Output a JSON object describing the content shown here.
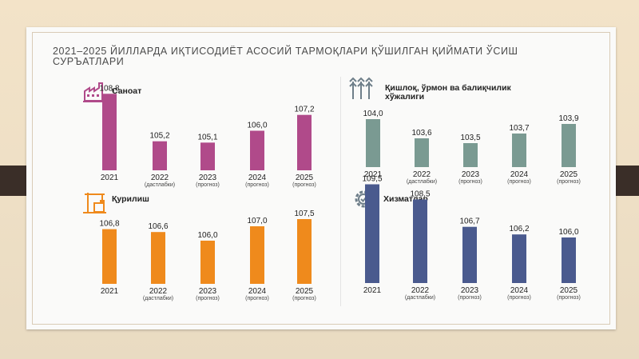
{
  "headline": "2021–2025 ЙИЛЛАРДА ИҚТИСОДИЁТ АСОСИЙ ТАРМОҚЛАРИ ҚЎШИЛГАН ҚИЙМАТИ ЎСИШ СУРЪАТЛАРИ",
  "chart_data": [
    {
      "type": "bar",
      "title": "Саноат",
      "icon": "factory-icon",
      "color": "#b04a8a",
      "categories": [
        "2021",
        "2022",
        "2023",
        "2024",
        "2025"
      ],
      "category_notes": [
        "",
        "(дастлабки)",
        "(прогноз)",
        "(прогноз)",
        "(прогноз)"
      ],
      "values": [
        108.8,
        105.2,
        105.1,
        106.0,
        107.2
      ],
      "value_labels": [
        "108,8",
        "105,2",
        "105,1",
        "106,0",
        "107,2"
      ]
    },
    {
      "type": "bar",
      "title": "Қишлоқ, ўрмон ва балиқчилик хўжалиги",
      "icon": "wheat-icon",
      "color": "#7a9a92",
      "categories": [
        "2021",
        "2022",
        "2023",
        "2024",
        "2025"
      ],
      "category_notes": [
        "",
        "(дастлабки)",
        "(прогноз)",
        "(прогноз)",
        "(прогноз)"
      ],
      "values": [
        104.0,
        103.6,
        103.5,
        103.7,
        103.9
      ],
      "value_labels": [
        "104,0",
        "103,6",
        "103,5",
        "103,7",
        "103,9"
      ]
    },
    {
      "type": "bar",
      "title": "Қурилиш",
      "icon": "crane-icon",
      "color": "#ef8a1c",
      "categories": [
        "2021",
        "2022",
        "2023",
        "2024",
        "2025"
      ],
      "category_notes": [
        "",
        "(дастлабки)",
        "(прогноз)",
        "(прогноз)",
        "(прогноз)"
      ],
      "values": [
        106.8,
        106.6,
        106.0,
        107.0,
        107.5
      ],
      "value_labels": [
        "106,8",
        "106,6",
        "106,0",
        "107,0",
        "107,5"
      ]
    },
    {
      "type": "bar",
      "title": "Хизматлар",
      "icon": "services-gear-icon",
      "color": "#4a5a8e",
      "categories": [
        "2021",
        "2022",
        "2023",
        "2024",
        "2025"
      ],
      "category_notes": [
        "",
        "(дастлабки)",
        "(прогноз)",
        "(прогноз)",
        "(прогноз)"
      ],
      "values": [
        109.5,
        108.5,
        106.7,
        106.2,
        106.0
      ],
      "value_labels": [
        "109,5",
        "108,5",
        "106,7",
        "106,2",
        "106,0"
      ]
    }
  ]
}
